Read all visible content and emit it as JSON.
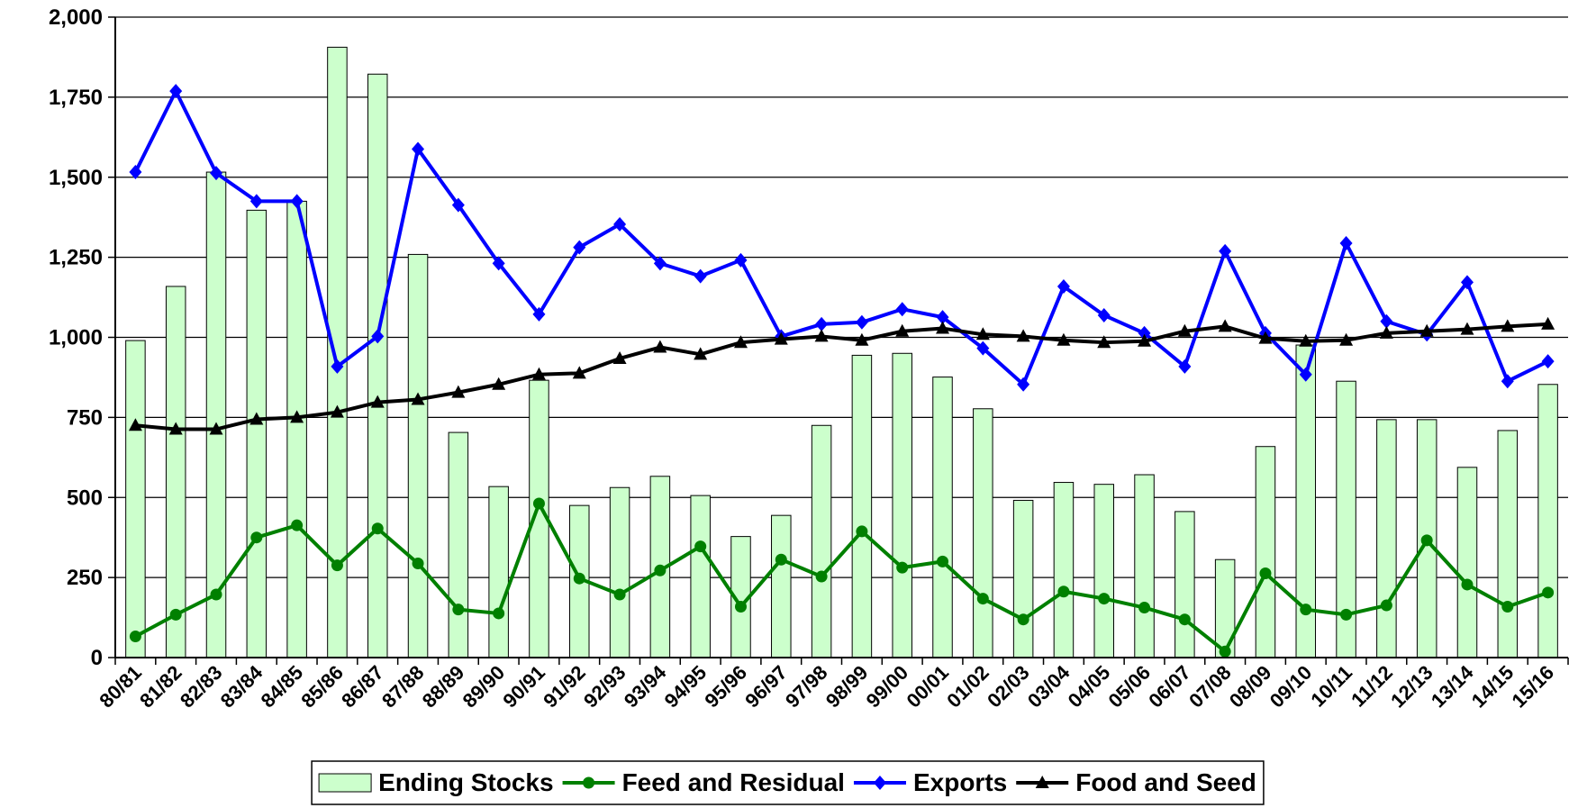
{
  "chart_data": {
    "type": "combo",
    "categories": [
      "80/81",
      "81/82",
      "82/83",
      "83/84",
      "84/85",
      "85/86",
      "86/87",
      "87/88",
      "88/89",
      "89/90",
      "90/91",
      "91/92",
      "92/93",
      "93/94",
      "94/95",
      "95/96",
      "96/97",
      "97/98",
      "98/99",
      "99/00",
      "00/01",
      "01/02",
      "02/03",
      "03/04",
      "04/05",
      "05/06",
      "06/07",
      "07/08",
      "08/09",
      "09/10",
      "10/11",
      "11/12",
      "12/13",
      "13/14",
      "14/15",
      "15/16"
    ],
    "series": [
      {
        "name": "Ending Stocks",
        "type": "bar",
        "color": "#ccffcc",
        "values": [
          990,
          1159,
          1516,
          1397,
          1425,
          1906,
          1822,
          1259,
          703,
          534,
          866,
          475,
          531,
          566,
          506,
          378,
          444,
          725,
          944,
          950,
          876,
          777,
          491,
          547,
          541,
          571,
          456,
          306,
          659,
          976,
          863,
          743,
          743,
          594,
          709,
          853
        ]
      },
      {
        "name": "Feed and Residual",
        "type": "line",
        "marker": "circle",
        "color": "#008000",
        "values": [
          66,
          134,
          197,
          375,
          413,
          288,
          403,
          294,
          150,
          138,
          481,
          247,
          197,
          272,
          347,
          159,
          306,
          253,
          394,
          281,
          300,
          184,
          119,
          206,
          184,
          156,
          119,
          19,
          263,
          150,
          134,
          163,
          366,
          228,
          159,
          203
        ]
      },
      {
        "name": "Exports",
        "type": "line",
        "marker": "diamond",
        "color": "#0000ff",
        "values": [
          1516,
          1769,
          1513,
          1425,
          1425,
          909,
          1003,
          1588,
          1413,
          1231,
          1072,
          1281,
          1353,
          1231,
          1191,
          1241,
          1003,
          1041,
          1047,
          1088,
          1063,
          966,
          853,
          1159,
          1069,
          1013,
          909,
          1269,
          1013,
          884,
          1294,
          1050,
          1009,
          1172,
          863,
          925
        ]
      },
      {
        "name": "Food and Seed",
        "type": "line",
        "marker": "triangle",
        "color": "#000000",
        "values": [
          725,
          713,
          713,
          744,
          750,
          766,
          797,
          806,
          828,
          853,
          884,
          888,
          934,
          969,
          947,
          984,
          994,
          1003,
          991,
          1019,
          1028,
          1009,
          1003,
          991,
          984,
          988,
          1019,
          1034,
          997,
          988,
          991,
          1013,
          1019,
          1025,
          1034,
          1041
        ]
      }
    ],
    "ylim": [
      0,
      2000
    ],
    "yticks": [
      0,
      250,
      500,
      {
        "value": 750,
        "label": "750"
      },
      {
        "value": 1000,
        "label": "1,000"
      },
      {
        "value": 1250,
        "label": "1,250"
      },
      {
        "value": 1500,
        "label": "1,500"
      },
      {
        "value": 1750,
        "label": "1,750"
      },
      {
        "value": 2000,
        "label": "2,000"
      }
    ],
    "grid": true,
    "legend": "bottom"
  }
}
